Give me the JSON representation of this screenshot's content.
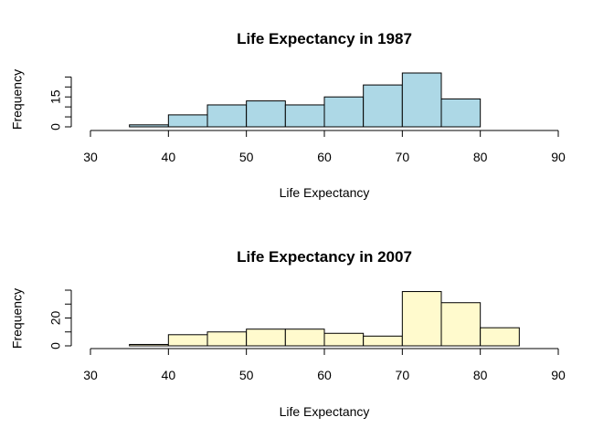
{
  "chart_data": [
    {
      "type": "bar",
      "title": "Life Expectancy in 1987",
      "xlabel": "Life Expectancy",
      "ylabel": "Frequency",
      "bins": [
        [
          35,
          40
        ],
        [
          40,
          45
        ],
        [
          45,
          50
        ],
        [
          50,
          55
        ],
        [
          55,
          60
        ],
        [
          60,
          65
        ],
        [
          65,
          70
        ],
        [
          70,
          75
        ],
        [
          75,
          80
        ]
      ],
      "values": [
        1,
        6,
        11,
        13,
        11,
        15,
        21,
        27,
        14
      ],
      "xlim": [
        30,
        90
      ],
      "xticks": [
        30,
        40,
        50,
        60,
        70,
        80,
        90
      ],
      "ylim": [
        0,
        27
      ],
      "yticks": [
        0,
        5,
        10,
        15,
        20,
        25
      ],
      "ytick_labels": [
        "0",
        "",
        "",
        "15",
        "",
        ""
      ],
      "color": "#ADD8E6"
    },
    {
      "type": "bar",
      "title": "Life Expectancy in 2007",
      "xlabel": "Life Expectancy",
      "ylabel": "Frequency",
      "bins": [
        [
          35,
          40
        ],
        [
          40,
          45
        ],
        [
          45,
          50
        ],
        [
          50,
          55
        ],
        [
          55,
          60
        ],
        [
          60,
          65
        ],
        [
          65,
          70
        ],
        [
          70,
          75
        ],
        [
          75,
          80
        ],
        [
          80,
          85
        ]
      ],
      "values": [
        1,
        8,
        10,
        12,
        12,
        9,
        7,
        39,
        31,
        13
      ],
      "xlim": [
        30,
        90
      ],
      "xticks": [
        30,
        40,
        50,
        60,
        70,
        80,
        90
      ],
      "ylim": [
        0,
        40
      ],
      "yticks": [
        0,
        10,
        20,
        30,
        40
      ],
      "ytick_labels": [
        "0",
        "",
        "20",
        "",
        ""
      ],
      "color": "#FFFACD"
    }
  ]
}
